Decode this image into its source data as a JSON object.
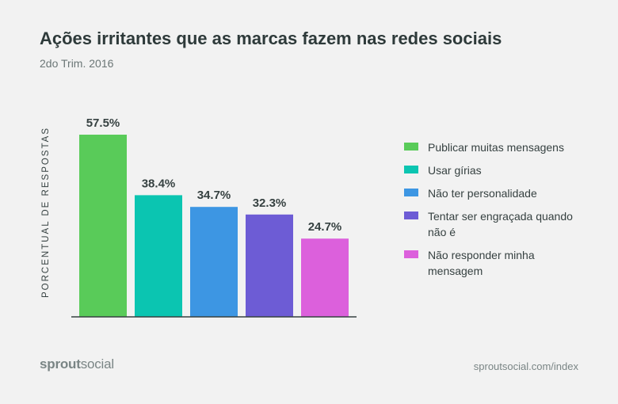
{
  "title": "Ações irritantes que as marcas fazem nas redes sociais",
  "subtitle": "2do Trim. 2016",
  "footer": {
    "logo_bold": "sprout",
    "logo_regular": "social",
    "url": "sproutsocial.com/index"
  },
  "chart_data": {
    "type": "bar",
    "title": "Ações irritantes que as marcas fazem nas redes sociais",
    "subtitle": "2do Trim. 2016",
    "ylabel": "PORCENTUAL DE RESPOSTAS",
    "xlabel": "",
    "ylim": [
      0,
      60
    ],
    "grid": false,
    "legend_position": "right",
    "categories": [
      "Publicar muitas mensagens",
      "Usar gírias",
      "Não ter personalidade",
      "Tentar ser engraçada quando não é",
      "Não responder minha mensagem"
    ],
    "values": [
      57.5,
      38.4,
      34.7,
      32.3,
      24.7
    ],
    "value_labels": [
      "57.5%",
      "38.4%",
      "34.7%",
      "32.3%",
      "24.7%"
    ],
    "colors": [
      "#59cb59",
      "#0bc5b1",
      "#3d96e3",
      "#6d5cd5",
      "#dc60dc"
    ]
  },
  "legend": [
    {
      "label": "Publicar muitas mensagens",
      "color": "#59cb59"
    },
    {
      "label": "Usar gírias",
      "color": "#0bc5b1"
    },
    {
      "label": "Não ter personalidade",
      "color": "#3d96e3"
    },
    {
      "label": "Tentar ser engraçada quando não é",
      "color": "#6d5cd5"
    },
    {
      "label": "Não responder minha mensagem",
      "color": "#dc60dc"
    }
  ]
}
